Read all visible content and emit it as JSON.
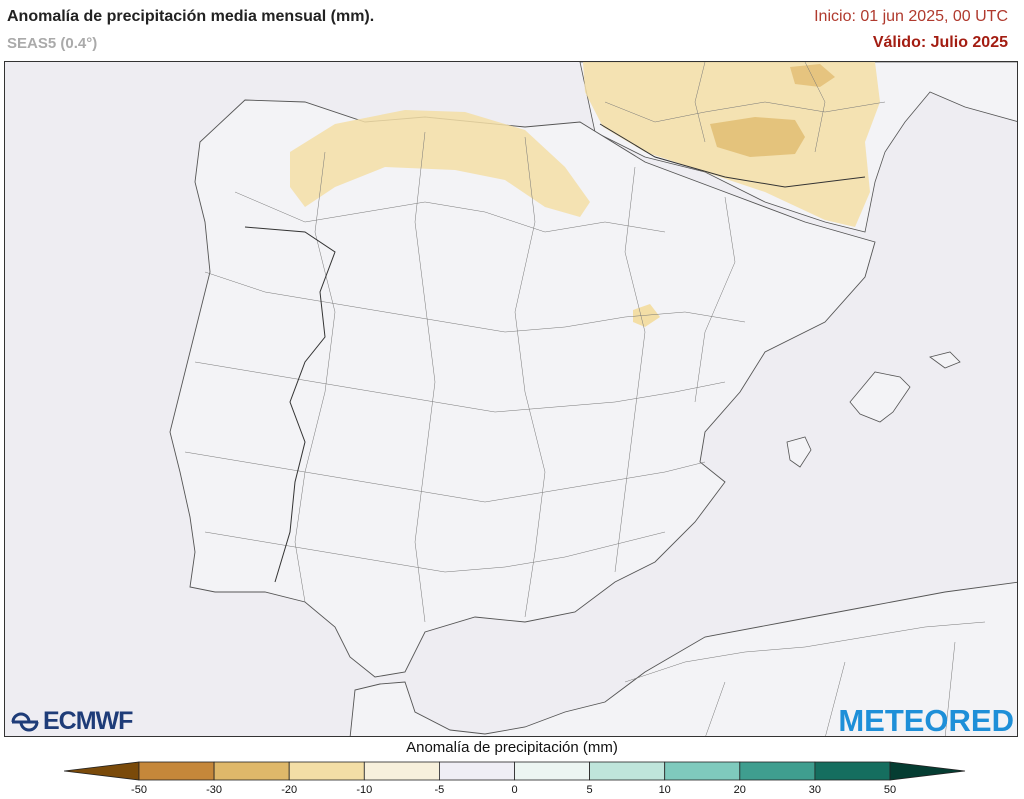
{
  "header": {
    "title": "Anomalía de precipitación media mensual (mm).",
    "model": "SEAS5 (0.4°)",
    "init": "Inicio: 01 jun 2025, 00 UTC",
    "valid": "Válido: Julio 2025"
  },
  "logos": {
    "left": "ECMWF",
    "right": "METEORED"
  },
  "colorbar": {
    "title": "Anomalía de precipitación (mm)",
    "ticks": [
      "-50",
      "-30",
      "-20",
      "-10",
      "-5",
      "0",
      "5",
      "10",
      "20",
      "30",
      "50"
    ],
    "colors": [
      "#7a4a0a",
      "#c5873a",
      "#dfb86a",
      "#f3dea6",
      "#f7f0dc",
      "#efeef5",
      "#ecf5f2",
      "#bfe5db",
      "#7fcabd",
      "#3f9e8f",
      "#156e5f",
      "#053d32"
    ]
  },
  "colors": {
    "ocean": "#eeedf2",
    "land": "#f3f3f6",
    "border": "#555555",
    "dry_anomaly": "#f3dea6",
    "dry_strong": "#dfb86a"
  }
}
